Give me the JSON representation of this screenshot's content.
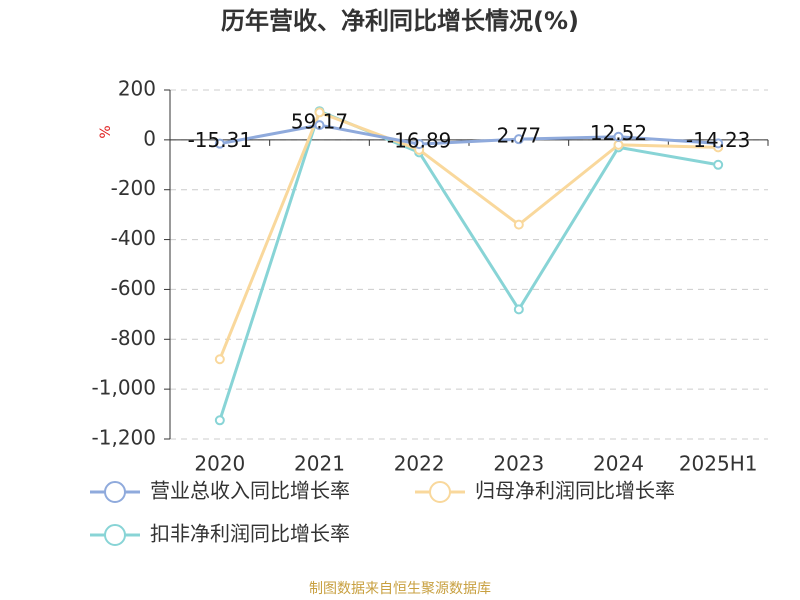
{
  "chart_data": {
    "type": "line",
    "title": "历年营收、净利同比增长情况(%)",
    "y_unit": "%",
    "categories": [
      "2020",
      "2021",
      "2022",
      "2023",
      "2024",
      "2025H1"
    ],
    "series": [
      {
        "name": "营业总收入同比增长率",
        "color": "#8faadc",
        "values": [
          -15.31,
          59.17,
          -16.89,
          2.77,
          12.52,
          -14.23
        ]
      },
      {
        "name": "归母净利润同比增长率",
        "color": "#f9d89c",
        "values": [
          -880,
          110,
          -40,
          -340,
          -20,
          -30
        ]
      },
      {
        "name": "扣非净利润同比增长率",
        "color": "#88d4d6",
        "values": [
          -1125,
          115,
          -50,
          -680,
          -30,
          -100
        ]
      }
    ],
    "ylim": [
      -1200,
      200
    ],
    "yticks": [
      {
        "value": -1200,
        "label": "-1,200"
      },
      {
        "value": -1000,
        "label": "-1,000"
      },
      -800,
      -600,
      -400,
      -200,
      0,
      200
    ],
    "grid": true,
    "source": "制图数据来自恒生聚源数据库"
  }
}
